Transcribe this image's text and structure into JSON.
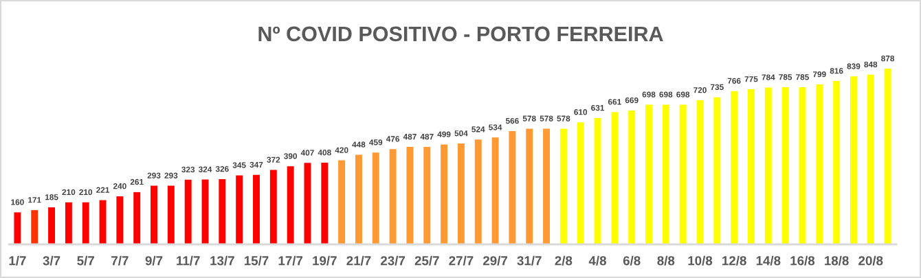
{
  "chart_data": {
    "type": "bar",
    "title": "Nº COVID POSITIVO - PORTO FERREIRA",
    "categories": [
      "1/7",
      null,
      "3/7",
      null,
      "5/7",
      null,
      "7/7",
      null,
      "9/7",
      null,
      "11/7",
      null,
      "13/7",
      null,
      "15/7",
      null,
      "17/7",
      null,
      "19/7",
      null,
      "21/7",
      null,
      "23/7",
      null,
      "25/7",
      null,
      "27/7",
      null,
      "29/7",
      null,
      "31/7",
      null,
      "2/8",
      null,
      "4/8",
      null,
      "6/8",
      null,
      "8/8",
      null,
      "10/8",
      null,
      "12/8",
      null,
      "14/8",
      null,
      "16/8",
      null,
      "18/8",
      null,
      "20/8",
      null
    ],
    "values": [
      160,
      171,
      185,
      210,
      210,
      221,
      240,
      261,
      293,
      293,
      323,
      324,
      326,
      345,
      347,
      372,
      390,
      407,
      408,
      420,
      448,
      459,
      476,
      487,
      487,
      499,
      504,
      524,
      534,
      566,
      578,
      578,
      578,
      610,
      631,
      661,
      669,
      698,
      698,
      698,
      720,
      735,
      766,
      775,
      784,
      785,
      785,
      799,
      816,
      839,
      848,
      878
    ],
    "colors": [
      "#ff0000",
      "#ff3300",
      "#ff0000",
      "#ff0000",
      "#ff0000",
      "#ff0000",
      "#ff0000",
      "#ff0000",
      "#ff0000",
      "#ff0000",
      "#ff0000",
      "#ff0000",
      "#ff0000",
      "#ff0000",
      "#ff0000",
      "#ff0000",
      "#ff0000",
      "#ff0000",
      "#ff0000",
      "#ff9933",
      "#ff9933",
      "#ff9933",
      "#ff9933",
      "#ff9933",
      "#ff9933",
      "#ff9933",
      "#ff9933",
      "#ff9933",
      "#ff9933",
      "#ff9933",
      "#ff9933",
      "#ff9933",
      "#ffff00",
      "#ffff00",
      "#ffff00",
      "#ffff00",
      "#ffff00",
      "#ffff00",
      "#ffff00",
      "#ffff00",
      "#ffff00",
      "#ffff00",
      "#ffff00",
      "#ffff00",
      "#ffff00",
      "#ffff00",
      "#ffff00",
      "#ffff00",
      "#ffff00",
      "#ffff00",
      "#ffff00",
      "#ffff00"
    ],
    "data_labels": true,
    "tick_labels": "x"
  }
}
